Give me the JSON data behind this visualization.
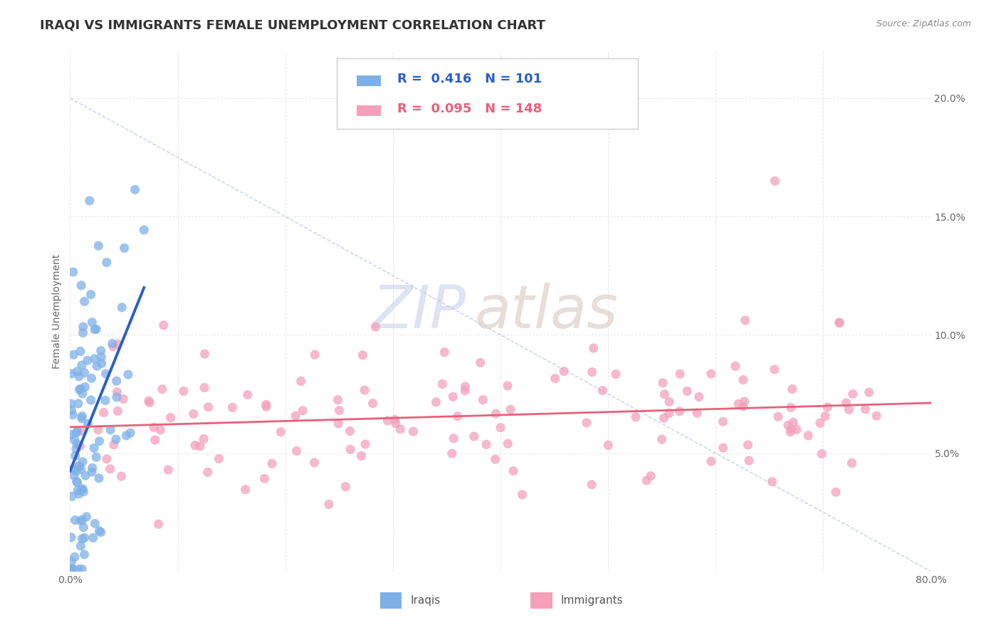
{
  "title": "IRAQI VS IMMIGRANTS FEMALE UNEMPLOYMENT CORRELATION CHART",
  "source_text": "Source: ZipAtlas.com",
  "ylabel": "Female Unemployment",
  "xlim": [
    0.0,
    0.8
  ],
  "ylim": [
    0.0,
    0.22
  ],
  "xticks": [
    0.0,
    0.1,
    0.2,
    0.3,
    0.4,
    0.5,
    0.6,
    0.7,
    0.8
  ],
  "xticklabels": [
    "0.0%",
    "",
    "",
    "",
    "",
    "",
    "",
    "",
    "80.0%"
  ],
  "yticks": [
    0.0,
    0.05,
    0.1,
    0.15,
    0.2
  ],
  "yticklabels": [
    "",
    "5.0%",
    "10.0%",
    "15.0%",
    "20.0%"
  ],
  "blue_R": 0.416,
  "blue_N": 101,
  "pink_R": 0.095,
  "pink_N": 148,
  "blue_color": "#7EB0E8",
  "pink_color": "#F4A0BB",
  "blue_line_color": "#2B5FC7",
  "pink_line_color": "#E8607A",
  "ref_line_color": "#B8C4E0",
  "watermark_zip_color": "#C8D0E8",
  "watermark_atlas_color": "#D8C8C0",
  "background_color": "#FFFFFF",
  "grid_color": "#E8E8EE",
  "title_fontsize": 13,
  "axis_label_fontsize": 10,
  "tick_fontsize": 10,
  "legend_fontsize": 13
}
